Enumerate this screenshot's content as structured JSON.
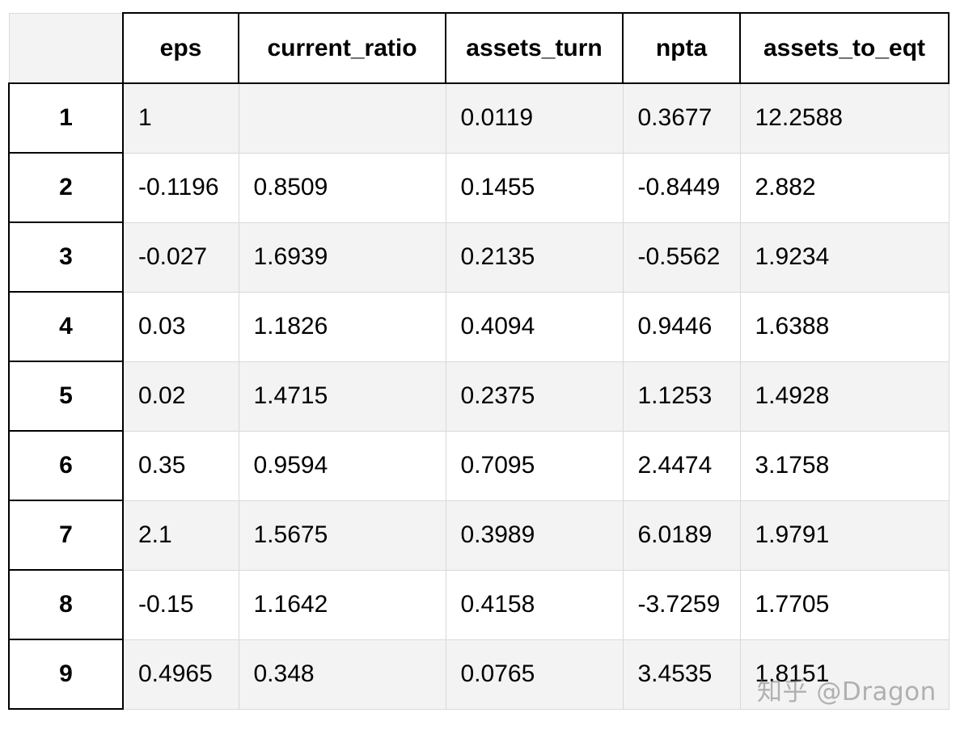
{
  "table": {
    "columns": [
      "",
      "eps",
      "current_ratio",
      "assets_turn",
      "npta",
      "assets_to_eqt"
    ],
    "rows": [
      {
        "index": "1",
        "cells": [
          "1",
          "",
          "0.0119",
          "0.3677",
          "12.2588"
        ]
      },
      {
        "index": "2",
        "cells": [
          "-0.1196",
          "0.8509",
          "0.1455",
          "-0.8449",
          "2.882"
        ]
      },
      {
        "index": "3",
        "cells": [
          "-0.027",
          "1.6939",
          "0.2135",
          "-0.5562",
          "1.9234"
        ]
      },
      {
        "index": "4",
        "cells": [
          "0.03",
          "1.1826",
          "0.4094",
          "0.9446",
          "1.6388"
        ]
      },
      {
        "index": "5",
        "cells": [
          "0.02",
          "1.4715",
          "0.2375",
          "1.1253",
          "1.4928"
        ]
      },
      {
        "index": "6",
        "cells": [
          "0.35",
          "0.9594",
          "0.7095",
          "2.4474",
          "3.1758"
        ]
      },
      {
        "index": "7",
        "cells": [
          "2.1",
          "1.5675",
          "0.3989",
          "6.0189",
          "1.9791"
        ]
      },
      {
        "index": "8",
        "cells": [
          "-0.15",
          "1.1642",
          "0.4158",
          "-3.7259",
          "1.7705"
        ]
      },
      {
        "index": "9",
        "cells": [
          "0.4965",
          "0.348",
          "0.0765",
          "3.4535",
          "1.8151"
        ]
      }
    ]
  },
  "watermark": "知乎 @Dragon",
  "colors": {
    "header_border": "#000000",
    "grid": "#d9d9d9",
    "stripe": "#f3f3f3",
    "text": "#000000"
  }
}
